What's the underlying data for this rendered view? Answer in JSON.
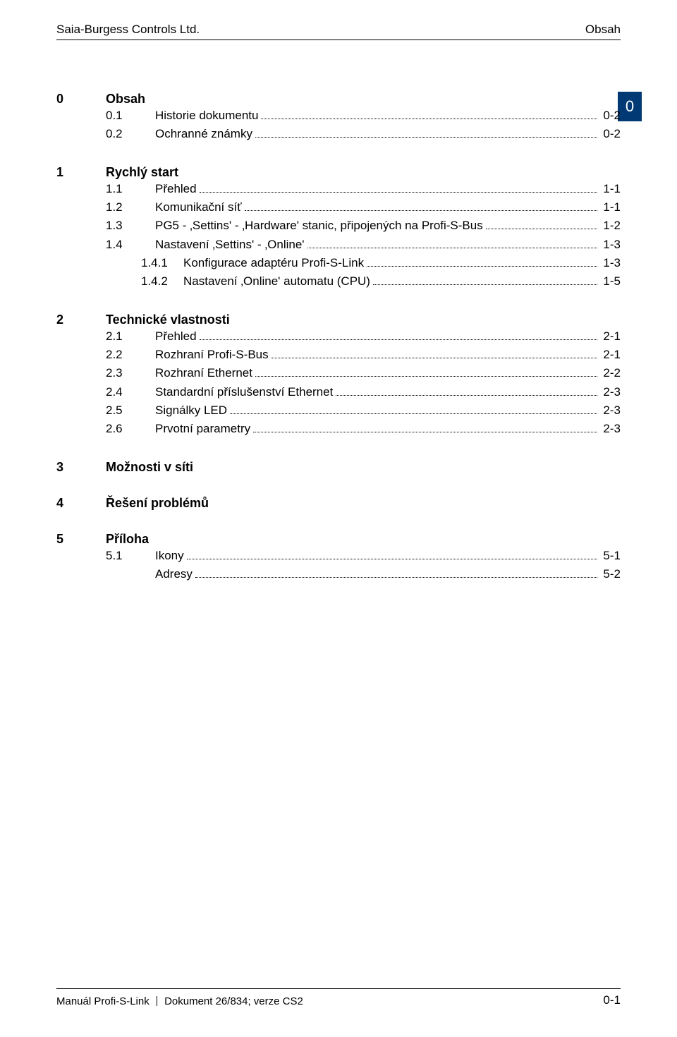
{
  "header": {
    "left": "Saia-Burgess Controls Ltd.",
    "right": "Obsah"
  },
  "side_tab": "0",
  "toc": {
    "sections": [
      {
        "num": "0",
        "title": "Obsah",
        "entries": [
          {
            "level": 1,
            "num": "0.1",
            "title": "Historie dokumentu",
            "page": "0-2"
          },
          {
            "level": 1,
            "num": "0.2",
            "title": "Ochranné známky",
            "page": "0-2"
          }
        ]
      },
      {
        "num": "1",
        "title": "Rychlý start",
        "entries": [
          {
            "level": 1,
            "num": "1.1",
            "title": "Přehled",
            "page": "1-1"
          },
          {
            "level": 1,
            "num": "1.2",
            "title": "Komunikační síť",
            "page": "1-1"
          },
          {
            "level": 1,
            "num": "1.3",
            "title": "PG5 - ‚Settins' - ‚Hardware' stanic, připojených na Profi-S-Bus",
            "page": "1-2"
          },
          {
            "level": 1,
            "num": "1.4",
            "title": "Nastavení ‚Settins' - ‚Online'",
            "page": "1-3"
          },
          {
            "level": 2,
            "num": "1.4.1",
            "title": "Konfigurace adaptéru Profi-S-Link",
            "page": "1-3"
          },
          {
            "level": 2,
            "num": "1.4.2",
            "title": "Nastavení ‚Online' automatu (CPU)",
            "page": "1-5"
          }
        ]
      },
      {
        "num": "2",
        "title": "Technické vlastnosti",
        "entries": [
          {
            "level": 1,
            "num": "2.1",
            "title": "Přehled",
            "page": "2-1"
          },
          {
            "level": 1,
            "num": "2.2",
            "title": "Rozhraní Profi-S-Bus",
            "page": "2-1"
          },
          {
            "level": 1,
            "num": "2.3",
            "title": "Rozhraní Ethernet",
            "page": "2-2"
          },
          {
            "level": 1,
            "num": "2.4",
            "title": "Standardní příslušenství Ethernet",
            "page": "2-3"
          },
          {
            "level": 1,
            "num": "2.5",
            "title": "Signálky LED",
            "page": "2-3"
          },
          {
            "level": 1,
            "num": "2.6",
            "title": "Prvotní parametry",
            "page": "2-3"
          }
        ]
      },
      {
        "num": "3",
        "title": "Možnosti v síti",
        "entries": []
      },
      {
        "num": "4",
        "title": "Řešení problémů",
        "entries": []
      },
      {
        "num": "5",
        "title": "Příloha",
        "entries": [
          {
            "level": 1,
            "num": "5.1",
            "title": "Ikony",
            "page": "5-1"
          },
          {
            "level": 1,
            "num": "",
            "title": "Adresy",
            "page": "5-2"
          }
        ]
      }
    ]
  },
  "footer": {
    "left_1": "Manuál Profi-S-Link",
    "left_2": "Dokument 26/834; verze CS2",
    "right": "0-1"
  },
  "colors": {
    "side_tab_bg": "#003973",
    "side_tab_fg": "#ffffff",
    "text": "#000000",
    "bg": "#ffffff"
  },
  "typography": {
    "body_font": "Arial, Helvetica, sans-serif",
    "header_size_pt": 13,
    "section_size_pt": 13.5,
    "entry_size_pt": 12.5,
    "footer_size_pt": 11
  }
}
